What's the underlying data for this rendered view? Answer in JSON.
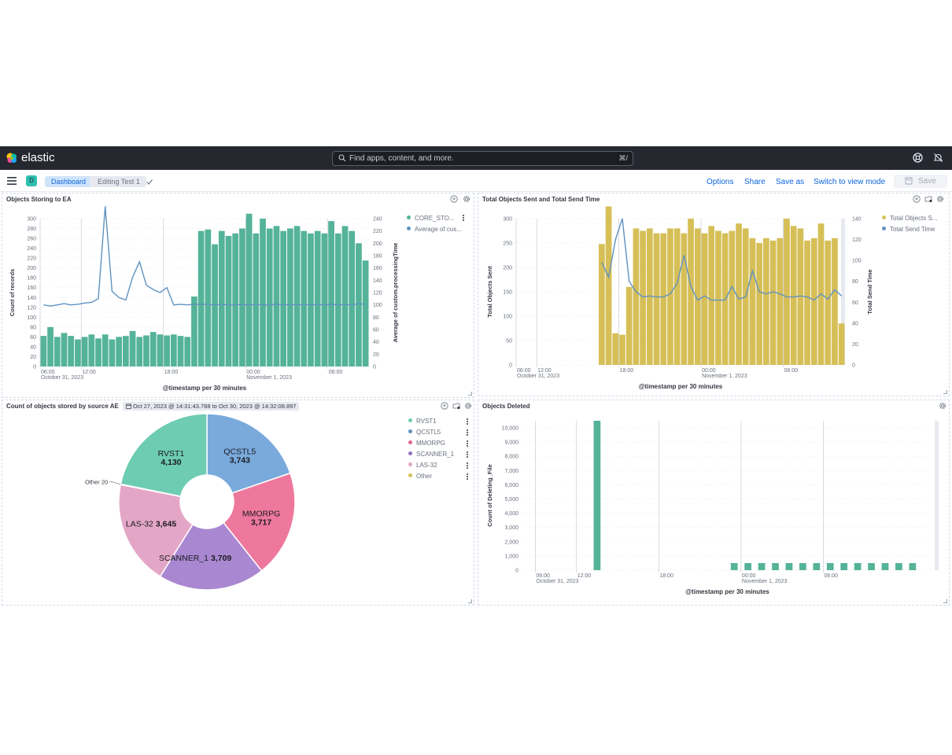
{
  "header": {
    "brand": "elastic",
    "search_placeholder": "Find apps, content, and more.",
    "search_shortcut": "⌘/",
    "help_icon": "help-icon",
    "news_icon": "newsfeed-icon"
  },
  "subbar": {
    "space_initial": "D",
    "breadcrumbs": [
      "Dashboard",
      "Editing Test 1"
    ],
    "actions": {
      "options": "Options",
      "share": "Share",
      "save_as": "Save as",
      "switch_mode": "Switch to view mode",
      "save": "Save"
    }
  },
  "colors": {
    "green": "#54b399",
    "blue": "#6092c0",
    "gold": "#d6bf57",
    "pink": "#e7664c",
    "accent": "#0b64dd",
    "header_bg": "#25282f"
  },
  "panels": {
    "p1": {
      "title": "Objects Storing to EA",
      "legend": [
        "CORE_STO...",
        "Average of cus..."
      ],
      "ylabel_left": "Count of records",
      "ylabel_right": "Average of custom.processingTime",
      "xlabel": "@timestamp per 30 minutes",
      "xticks": [
        "06:00",
        "12:00",
        "18:00",
        "00:00",
        "06:00"
      ],
      "xsub_first": "October 31, 2023",
      "xsub_mid": "November 1, 2023"
    },
    "p2": {
      "title": "Total Objects Sent and Total Send Time",
      "legend": [
        "Total Objects S...",
        "Total Send Time"
      ],
      "ylabel_left": "Total Objects Sent",
      "ylabel_right": "Total Send Time",
      "xlabel": "@timestamp per 30 minutes",
      "xticks": [
        "06:00",
        "12:00",
        "18:00",
        "00:00",
        "06:00"
      ],
      "xsub_first": "October 31, 2023",
      "xsub_mid": "November 1, 2023"
    },
    "p3": {
      "title": "Count of objects stored by source AE",
      "date_range": "Oct 27, 2023 @ 14:31:43.788 to Oct 30, 2023 @ 14:32:08.897",
      "legend": [
        "RVST1",
        "QCSTL5",
        "MMORPG",
        "SCANNER_1",
        "LAS-32",
        "Other"
      ],
      "other_label": "Other  20"
    },
    "p4": {
      "title": "Objects Deleted",
      "ylabel": "Count of Deleting_File",
      "xlabel": "@timestamp per 30 minutes",
      "xticks": [
        "06:00",
        "12:00",
        "18:00",
        "00:00",
        "06:00"
      ],
      "xsub_first": "October 31, 2023",
      "xsub_mid": "November 1, 2023"
    }
  },
  "chart_data": [
    {
      "type": "bar",
      "title": "Objects Storing to EA",
      "series": [
        {
          "name": "CORE_STO...",
          "type": "bar",
          "color": "#54b399",
          "values": [
            62,
            80,
            60,
            68,
            62,
            55,
            60,
            65,
            57,
            65,
            55,
            60,
            62,
            72,
            60,
            63,
            70,
            65,
            63,
            65,
            62,
            60,
            142,
            275,
            278,
            248,
            275,
            265,
            270,
            280,
            310,
            270,
            300,
            280,
            285,
            275,
            280,
            285,
            275,
            270,
            275,
            270,
            295,
            270,
            285,
            275,
            250,
            215
          ]
        },
        {
          "name": "Average of cus...",
          "type": "line",
          "color": "#6092c0",
          "values": [
            100,
            98,
            100,
            102,
            100,
            101,
            103,
            104,
            110,
            260,
            122,
            112,
            108,
            145,
            170,
            132,
            125,
            120,
            128,
            100,
            101,
            100,
            101,
            101,
            101,
            100,
            101,
            100,
            100,
            101,
            100,
            101,
            100,
            100,
            101,
            100,
            101,
            100,
            101,
            100,
            101,
            100,
            101,
            100,
            101,
            100,
            102,
            101
          ]
        }
      ],
      "ylim_left": [
        0,
        300
      ],
      "left_ticks": [
        0,
        20,
        40,
        60,
        80,
        100,
        120,
        140,
        160,
        180,
        200,
        220,
        240,
        260,
        280,
        300
      ],
      "ylim_right": [
        0,
        240
      ],
      "right_ticks": [
        0,
        20,
        40,
        60,
        80,
        100,
        120,
        140,
        160,
        180,
        200,
        220,
        240
      ],
      "xlabel": "@timestamp per 30 minutes",
      "ylabel": "Count of records",
      "y2label": "Average of custom.processingTime",
      "legend": "top-right",
      "grid": true
    },
    {
      "type": "bar",
      "title": "Total Objects Sent and Total Send Time",
      "series": [
        {
          "name": "Total Objects S...",
          "type": "bar",
          "color": "#d6bf57",
          "values": [
            248,
            325,
            65,
            62,
            160,
            280,
            275,
            280,
            270,
            270,
            280,
            280,
            270,
            300,
            280,
            270,
            285,
            275,
            270,
            275,
            290,
            280,
            260,
            250,
            260,
            255,
            260,
            300,
            285,
            280,
            255,
            260,
            290,
            255,
            260,
            85
          ]
        },
        {
          "name": "Total Send Time",
          "type": "line",
          "color": "#6092c0",
          "values": [
            98,
            84,
            120,
            140,
            80,
            70,
            65,
            66,
            65,
            65,
            68,
            78,
            105,
            75,
            62,
            66,
            62,
            62,
            62,
            75,
            63,
            65,
            90,
            70,
            68,
            70,
            68,
            65,
            65,
            66,
            65,
            62,
            68,
            63,
            72,
            66
          ]
        }
      ],
      "ylim_left": [
        0,
        300
      ],
      "left_ticks": [
        0,
        50,
        100,
        150,
        200,
        250,
        300
      ],
      "ylim_right": [
        0,
        140
      ],
      "right_ticks": [
        0,
        20,
        40,
        60,
        80,
        100,
        120,
        140
      ],
      "xlabel": "@timestamp per 30 minutes",
      "ylabel": "Total Objects Sent",
      "y2label": "Total Send Time",
      "legend": "top-right",
      "grid": true
    },
    {
      "type": "pie",
      "title": "Count of objects stored by source AE",
      "slices": [
        {
          "label": "QCSTL5",
          "value": 3743,
          "color": "#7aaadc",
          "display": "3,743"
        },
        {
          "label": "MMORPG",
          "value": 3717,
          "color": "#ee789d",
          "display": "3,717"
        },
        {
          "label": "SCANNER_1",
          "value": 3709,
          "color": "#a987d1",
          "display": "3,709"
        },
        {
          "label": "LAS-32",
          "value": 3645,
          "color": "#e4a6c7",
          "display": "3,645"
        },
        {
          "label": "Other",
          "value": 20,
          "color": "#d6bf57",
          "display": "20"
        },
        {
          "label": "RVST1",
          "value": 4130,
          "color": "#6dccb1",
          "display": "4,130"
        }
      ],
      "legend": "top-right",
      "donut": true
    },
    {
      "type": "bar",
      "title": "Objects Deleted",
      "series": [
        {
          "name": "Count of Deleting_File",
          "color": "#54b399",
          "points": [
            [
              5,
              10500
            ],
            [
              15,
              500
            ],
            [
              16,
              500
            ],
            [
              17,
              500
            ],
            [
              18,
              500
            ],
            [
              19,
              500
            ],
            [
              20,
              500
            ],
            [
              21,
              500
            ],
            [
              22,
              500
            ],
            [
              23,
              500
            ],
            [
              24,
              500
            ],
            [
              25,
              500
            ],
            [
              26,
              500
            ],
            [
              27,
              500
            ],
            [
              28,
              500
            ]
          ]
        }
      ],
      "x_slots": 30,
      "ylim": [
        0,
        10500
      ],
      "y_ticks": [
        0,
        1000,
        2000,
        3000,
        4000,
        5000,
        6000,
        7000,
        8000,
        9000,
        10000
      ],
      "y_tick_labels": [
        "0",
        "1,000",
        "2,000",
        "3,000",
        "4,000",
        "5,000",
        "6,000",
        "7,000",
        "8,000",
        "9,000",
        "10,000"
      ],
      "xlabel": "@timestamp per 30 minutes",
      "ylabel": "Count of Deleting_File",
      "grid": true
    }
  ]
}
